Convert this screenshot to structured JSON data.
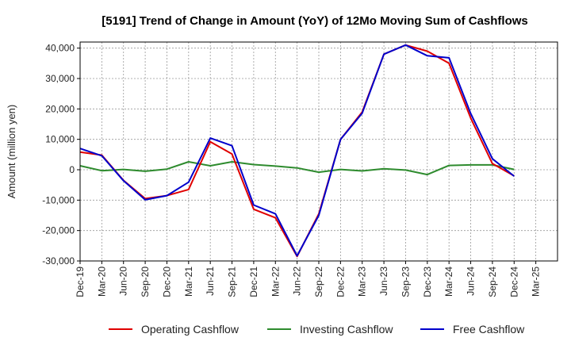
{
  "chart_data": {
    "type": "line",
    "title": "[5191]  Trend of Change in Amount (YoY) of 12Mo Moving Sum of Cashflows",
    "xlabel": "",
    "ylabel": "Amount (million yen)",
    "ylim": [
      -30000,
      42000
    ],
    "yticks": [
      -30000,
      -20000,
      -10000,
      0,
      10000,
      20000,
      30000,
      40000
    ],
    "ytick_labels": [
      "-30,000",
      "-20,000",
      "-10,000",
      "0",
      "10,000",
      "20,000",
      "30,000",
      "40,000"
    ],
    "grid": true,
    "legend_position": "bottom",
    "categories": [
      "Dec-19",
      "Mar-20",
      "Jun-20",
      "Sep-20",
      "Dec-20",
      "Mar-21",
      "Jun-21",
      "Sep-21",
      "Dec-21",
      "Mar-22",
      "Jun-22",
      "Sep-22",
      "Dec-22",
      "Mar-23",
      "Jun-23",
      "Sep-23",
      "Dec-23",
      "Mar-24",
      "Jun-24",
      "Sep-24",
      "Dec-24",
      "Mar-25"
    ],
    "series": [
      {
        "name": "Operating Cashflow",
        "color": "#e00000",
        "values": [
          5800,
          4800,
          -3500,
          -9500,
          -8500,
          -6500,
          9200,
          5200,
          -13000,
          -15800,
          -28500,
          -14500,
          10000,
          19000,
          38000,
          41000,
          39000,
          35000,
          17000,
          2000,
          -2000,
          null
        ]
      },
      {
        "name": "Investing Cashflow",
        "color": "#2e8b2e",
        "values": [
          1300,
          -300,
          100,
          -500,
          200,
          2600,
          1300,
          2600,
          1700,
          1200,
          600,
          -800,
          100,
          -400,
          300,
          -100,
          -1600,
          1400,
          1600,
          1600,
          100,
          null
        ]
      },
      {
        "name": "Free Cashflow",
        "color": "#0000cc",
        "values": [
          7000,
          4600,
          -3600,
          -9900,
          -8500,
          -4100,
          10400,
          7900,
          -11600,
          -14500,
          -28300,
          -15000,
          10000,
          18600,
          38000,
          41000,
          37500,
          36800,
          18500,
          3600,
          -2100,
          null
        ]
      }
    ]
  }
}
